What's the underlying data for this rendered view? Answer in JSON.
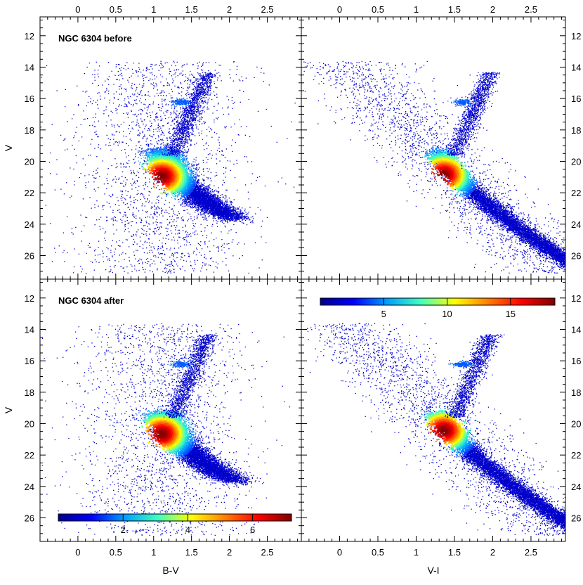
{
  "chart_data": {
    "type": "heatmap",
    "description_free": true,
    "shared": {
      "ylabel": "V",
      "ylim": [
        27.5,
        10.8
      ],
      "xlim": [
        -0.5,
        2.95
      ],
      "yticks": [
        12,
        14,
        16,
        18,
        20,
        22,
        24,
        26
      ],
      "ytick_labels": [
        "12",
        "14",
        "16",
        "18",
        "20",
        "22",
        "24",
        "26"
      ],
      "xticks": [
        0,
        0.5,
        1,
        1.5,
        2,
        2.5
      ],
      "xtick_labels": [
        "0",
        "0.5",
        "1",
        "1.5",
        "2",
        "2.5"
      ],
      "colormap": [
        "#00008f",
        "#0000ff",
        "#00a0ff",
        "#40ffc0",
        "#ffff00",
        "#ff8000",
        "#ff0000",
        "#800000"
      ]
    },
    "panels": [
      {
        "id": "top-left",
        "title": "NGC 6304 before",
        "xlabel": "",
        "ylabel": "V",
        "kind": "B-V",
        "density_peak": {
          "x": 1.1,
          "y": 20.9
        },
        "red_clump": {
          "x": 1.3,
          "y": 16.2
        }
      },
      {
        "id": "top-right",
        "title": "",
        "xlabel": "",
        "ylabel": "",
        "kind": "V-I",
        "density_peak": {
          "x": 1.35,
          "y": 20.8
        },
        "red_clump": {
          "x": 1.55,
          "y": 16.2
        }
      },
      {
        "id": "bottom-left",
        "title": "NGC 6304 after",
        "xlabel": "B-V",
        "ylabel": "V",
        "kind": "B-V",
        "density_peak": {
          "x": 1.1,
          "y": 20.6
        },
        "red_clump": {
          "x": 1.3,
          "y": 16.2
        },
        "colorbar": {
          "ticks": [
            2,
            4,
            6
          ],
          "tick_labels": [
            "2",
            "4",
            "6"
          ],
          "range": [
            0,
            7.2
          ]
        }
      },
      {
        "id": "bottom-right",
        "title": "",
        "xlabel": "V-I",
        "ylabel": "",
        "kind": "V-I",
        "density_peak": {
          "x": 1.35,
          "y": 20.4
        },
        "red_clump": {
          "x": 1.55,
          "y": 16.2
        },
        "colorbar": {
          "ticks": [
            5,
            10,
            15
          ],
          "tick_labels": [
            "5",
            "10",
            "15"
          ],
          "range": [
            0,
            18.5
          ]
        }
      }
    ]
  }
}
